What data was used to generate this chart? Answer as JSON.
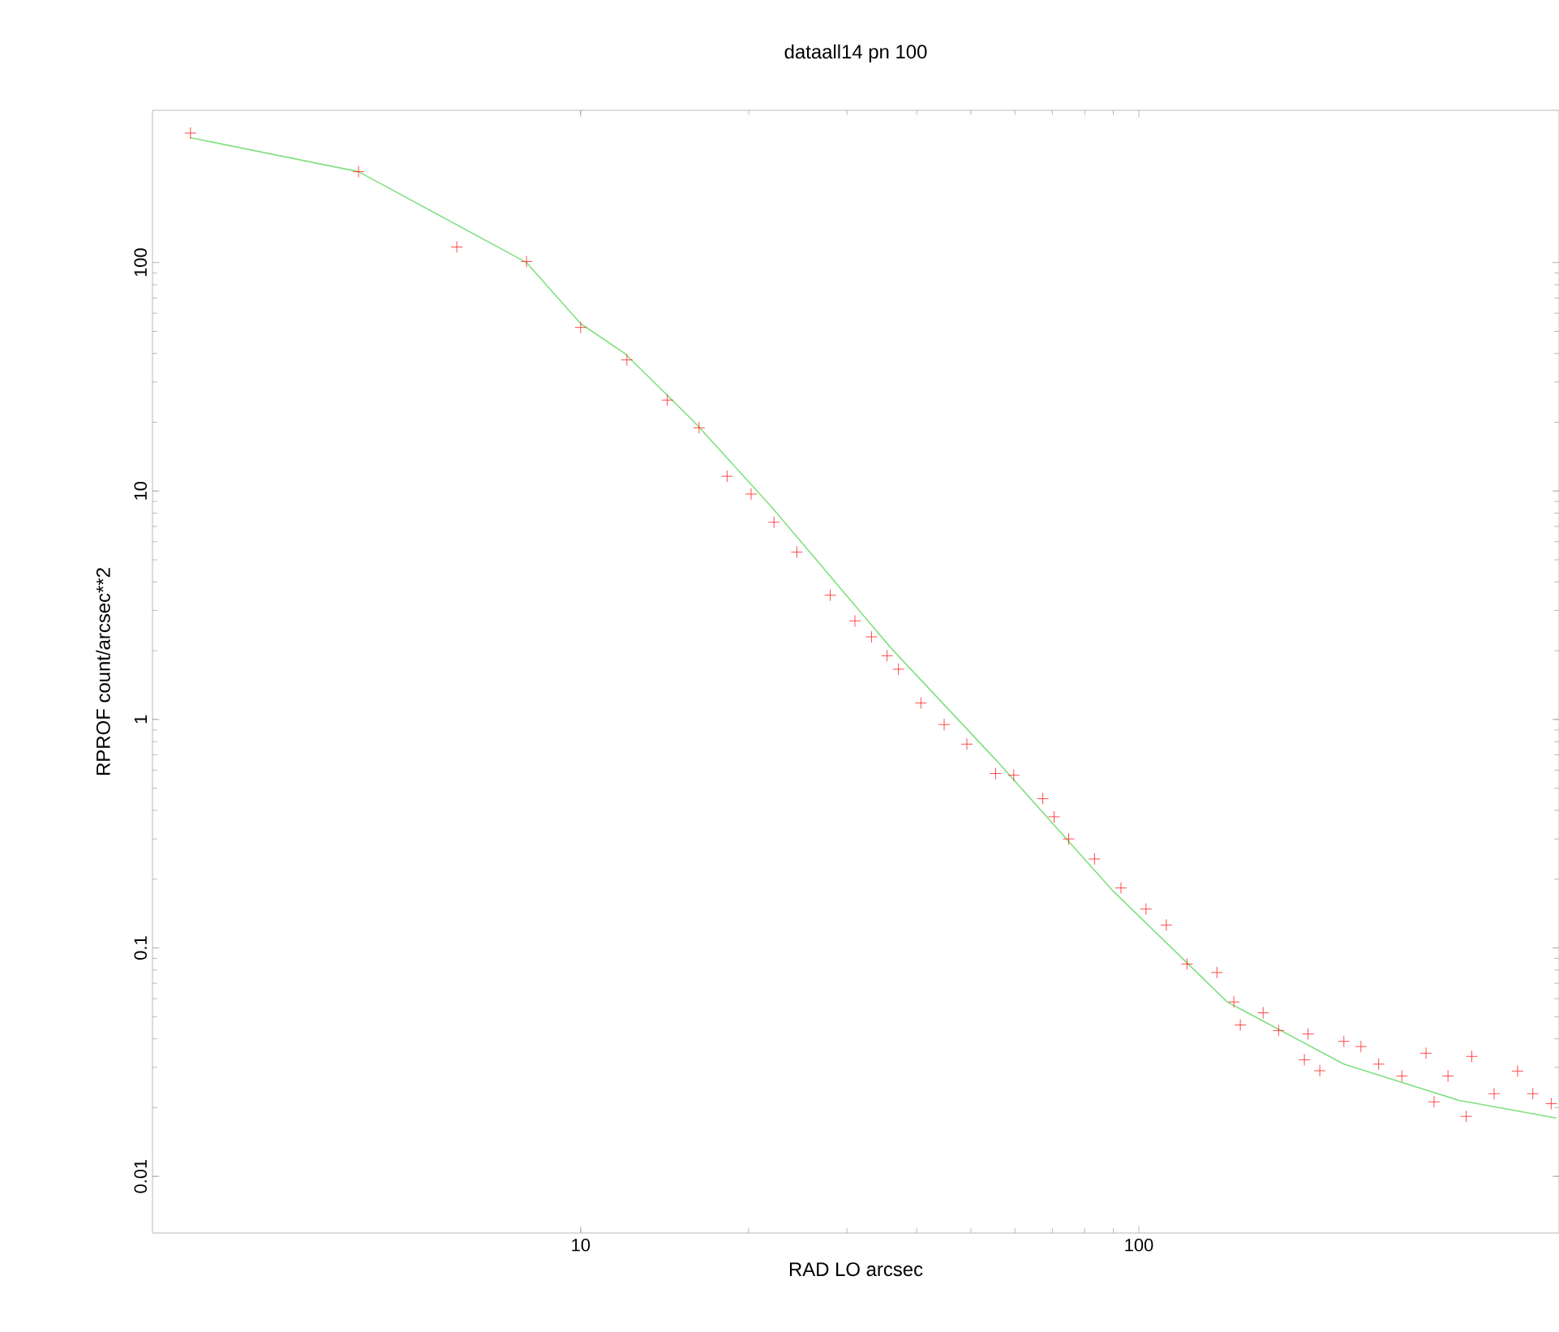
{
  "chart_data": {
    "type": "scatter",
    "title": "dataall14 pn 100",
    "xlabel": "RAD  LO  arcsec",
    "ylabel": "RPROF  count/arcsec**2",
    "log": "xy",
    "grid": false,
    "xlim": [
      1.71,
      566
    ],
    "ylim": [
      0.00565,
      464
    ],
    "xticks": [
      10,
      100
    ],
    "yticks": [
      0.01,
      0.1,
      1,
      10,
      100
    ],
    "series": [
      {
        "marker": "cross",
        "color": "#ff2020",
        "x": [
          2.0,
          4.0,
          6.0,
          8.0,
          10,
          12.1,
          14.3,
          16.3,
          18.3,
          20.2,
          22.2,
          24.4,
          28,
          31,
          33.2,
          35.4,
          37.1,
          40.7,
          44.8,
          49.2,
          55.4,
          59.7,
          67.3,
          70.5,
          74.9,
          83.3,
          92.9,
          103,
          112,
          122,
          138,
          148,
          152,
          167,
          178,
          198,
          201,
          211,
          233,
          250,
          269,
          296,
          327,
          338,
          358,
          386,
          395,
          433,
          477,
          508,
          548
        ],
        "values": [
          369,
          250,
          117,
          101,
          52,
          37.5,
          25,
          18.9,
          11.6,
          9.7,
          7.3,
          5.4,
          3.5,
          2.7,
          2.3,
          1.9,
          1.66,
          1.18,
          0.95,
          0.78,
          0.58,
          0.57,
          0.45,
          0.375,
          0.3,
          0.245,
          0.183,
          0.148,
          0.126,
          0.085,
          0.078,
          0.058,
          0.046,
          0.052,
          0.0435,
          0.0324,
          0.042,
          0.029,
          0.039,
          0.037,
          0.031,
          0.0275,
          0.0346,
          0.0212,
          0.0275,
          0.0183,
          0.0335,
          0.023,
          0.0289,
          0.023,
          0.0208
        ]
      },
      {
        "type": "line",
        "marker": "none",
        "color": "#80e080",
        "x": [
          2,
          4,
          8,
          10,
          12,
          16,
          22,
          36,
          55,
          90,
          144,
          233,
          375,
          560
        ],
        "values": [
          352,
          250,
          100,
          54,
          40,
          20,
          8.5,
          2.05,
          0.68,
          0.177,
          0.058,
          0.031,
          0.0215,
          0.018
        ]
      }
    ]
  }
}
